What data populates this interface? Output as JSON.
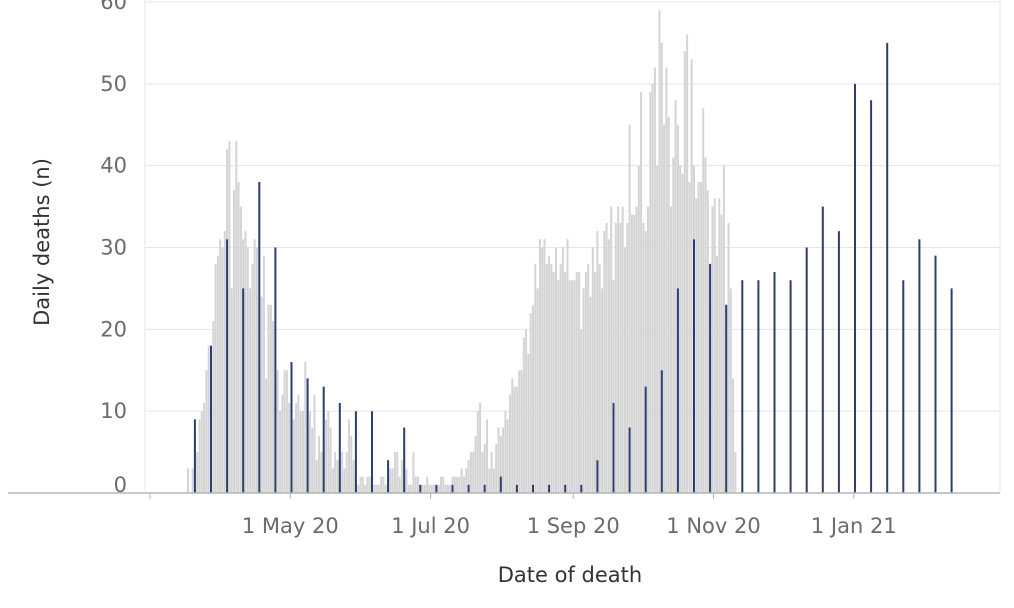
{
  "chart_data": {
    "type": "bar",
    "title": "",
    "xlabel": "Date of death",
    "ylabel": "Daily deaths (n)",
    "x_ticks": [
      "1 May 20",
      "1 Jul 20",
      "1 Sep 20",
      "1 Nov 20",
      "1 Jan 21"
    ],
    "y_ticks": [
      0,
      10,
      20,
      30,
      40,
      50,
      60
    ],
    "ylim": [
      0,
      60
    ],
    "xlim": [
      "2020-03-01",
      "2021-03-08"
    ],
    "grid": "horizontal",
    "colors": {
      "daily_bar": "#d4d4d4",
      "weekly_marker": "#2c3e70",
      "grid": "#e6e6e6",
      "axis": "#b5b5b5"
    },
    "series": [
      {
        "start_date": "2020-03-17",
        "values": [
          3,
          0,
          3,
          7,
          5,
          9,
          10,
          11,
          15,
          18,
          17,
          21,
          28,
          29,
          31,
          30,
          32,
          42,
          43,
          25,
          37,
          43,
          38,
          35,
          31,
          32,
          30,
          25,
          28,
          31,
          30,
          16,
          24,
          29,
          14,
          23,
          23,
          21,
          13,
          15,
          10,
          12,
          15,
          15,
          11,
          12,
          9,
          11,
          12,
          10,
          10,
          16,
          10,
          10,
          8,
          12,
          4,
          7,
          5,
          6,
          9,
          10,
          8,
          3,
          5,
          4,
          4,
          5,
          3,
          5,
          9,
          7,
          4,
          5,
          1,
          2,
          2,
          1,
          2,
          2,
          2,
          1,
          1,
          1,
          2,
          2,
          1,
          2,
          3,
          3,
          5,
          5,
          2,
          4,
          5,
          3,
          1,
          1,
          5,
          2,
          2,
          1,
          1,
          1,
          2,
          1,
          1,
          1,
          1,
          1,
          2,
          2,
          1,
          1,
          1,
          2,
          2,
          2,
          2,
          3,
          2,
          3,
          4,
          5,
          5,
          7,
          10,
          11,
          5,
          6,
          9,
          3,
          5,
          3,
          6,
          8,
          7,
          8,
          10,
          9,
          12,
          14,
          13,
          13,
          15,
          15,
          19,
          20,
          17,
          22,
          23,
          28,
          25,
          31,
          30,
          31,
          28,
          29,
          28,
          27,
          30,
          26,
          28,
          30,
          27,
          31,
          26,
          26,
          26,
          27,
          27,
          20,
          25,
          27,
          28,
          24,
          30,
          27,
          32,
          28,
          25,
          32,
          33,
          31,
          35,
          26,
          33,
          35,
          33,
          35,
          30,
          33,
          45,
          34,
          34,
          35,
          40,
          49,
          33,
          32,
          35,
          49,
          50,
          52,
          40,
          59,
          55,
          45,
          52,
          46,
          35,
          41,
          48,
          45,
          40,
          39,
          54,
          56,
          38,
          53,
          40,
          36,
          38,
          38,
          47,
          41,
          37,
          24,
          35,
          36,
          29,
          36,
          34,
          40,
          23,
          33,
          25,
          14,
          5
        ],
        "weekly_markers": [
          9,
          18,
          31,
          25,
          38,
          30,
          16,
          14,
          13,
          11,
          10,
          10,
          4,
          8,
          1,
          1,
          1,
          1,
          1,
          2,
          1,
          1,
          1,
          1,
          1,
          4,
          11,
          8,
          13,
          15,
          25,
          31,
          28,
          23,
          26,
          26,
          27,
          26,
          30,
          35,
          32,
          50,
          48,
          55,
          26,
          31,
          29,
          25
        ]
      }
    ]
  }
}
